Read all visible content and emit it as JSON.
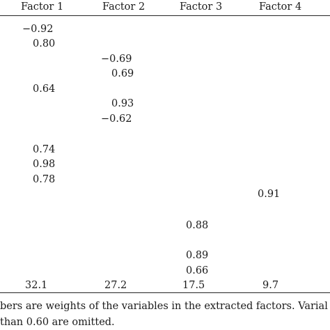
{
  "table": {
    "headers": [
      "Factor 1",
      "Factor 2",
      "Factor 3",
      "Factor 4"
    ],
    "rows": [
      [
        "−0.92",
        "",
        "",
        ""
      ],
      [
        "0.80",
        "",
        "",
        ""
      ],
      [
        "",
        "−0.69",
        "",
        ""
      ],
      [
        "",
        "0.69",
        "",
        ""
      ],
      [
        "0.64",
        "",
        "",
        ""
      ],
      [
        "",
        "0.93",
        "",
        ""
      ],
      [
        "",
        "−0.62",
        "",
        ""
      ],
      [
        "0.74",
        "",
        "",
        ""
      ],
      [
        "0.98",
        "",
        "",
        ""
      ],
      [
        "0.78",
        "",
        "",
        ""
      ],
      [
        "",
        "",
        "",
        "0.91"
      ],
      [
        "",
        "",
        "0.88",
        ""
      ],
      [
        "",
        "",
        "0.89",
        ""
      ],
      [
        "",
        "",
        "0.66",
        ""
      ]
    ],
    "variance_row": [
      "32.1",
      "27.2",
      "17.5",
      "9.7"
    ]
  },
  "footnote": {
    "line1": "bers are weights of the variables in the extracted factors. Varial",
    "line2": "than 0.60 are omitted."
  }
}
